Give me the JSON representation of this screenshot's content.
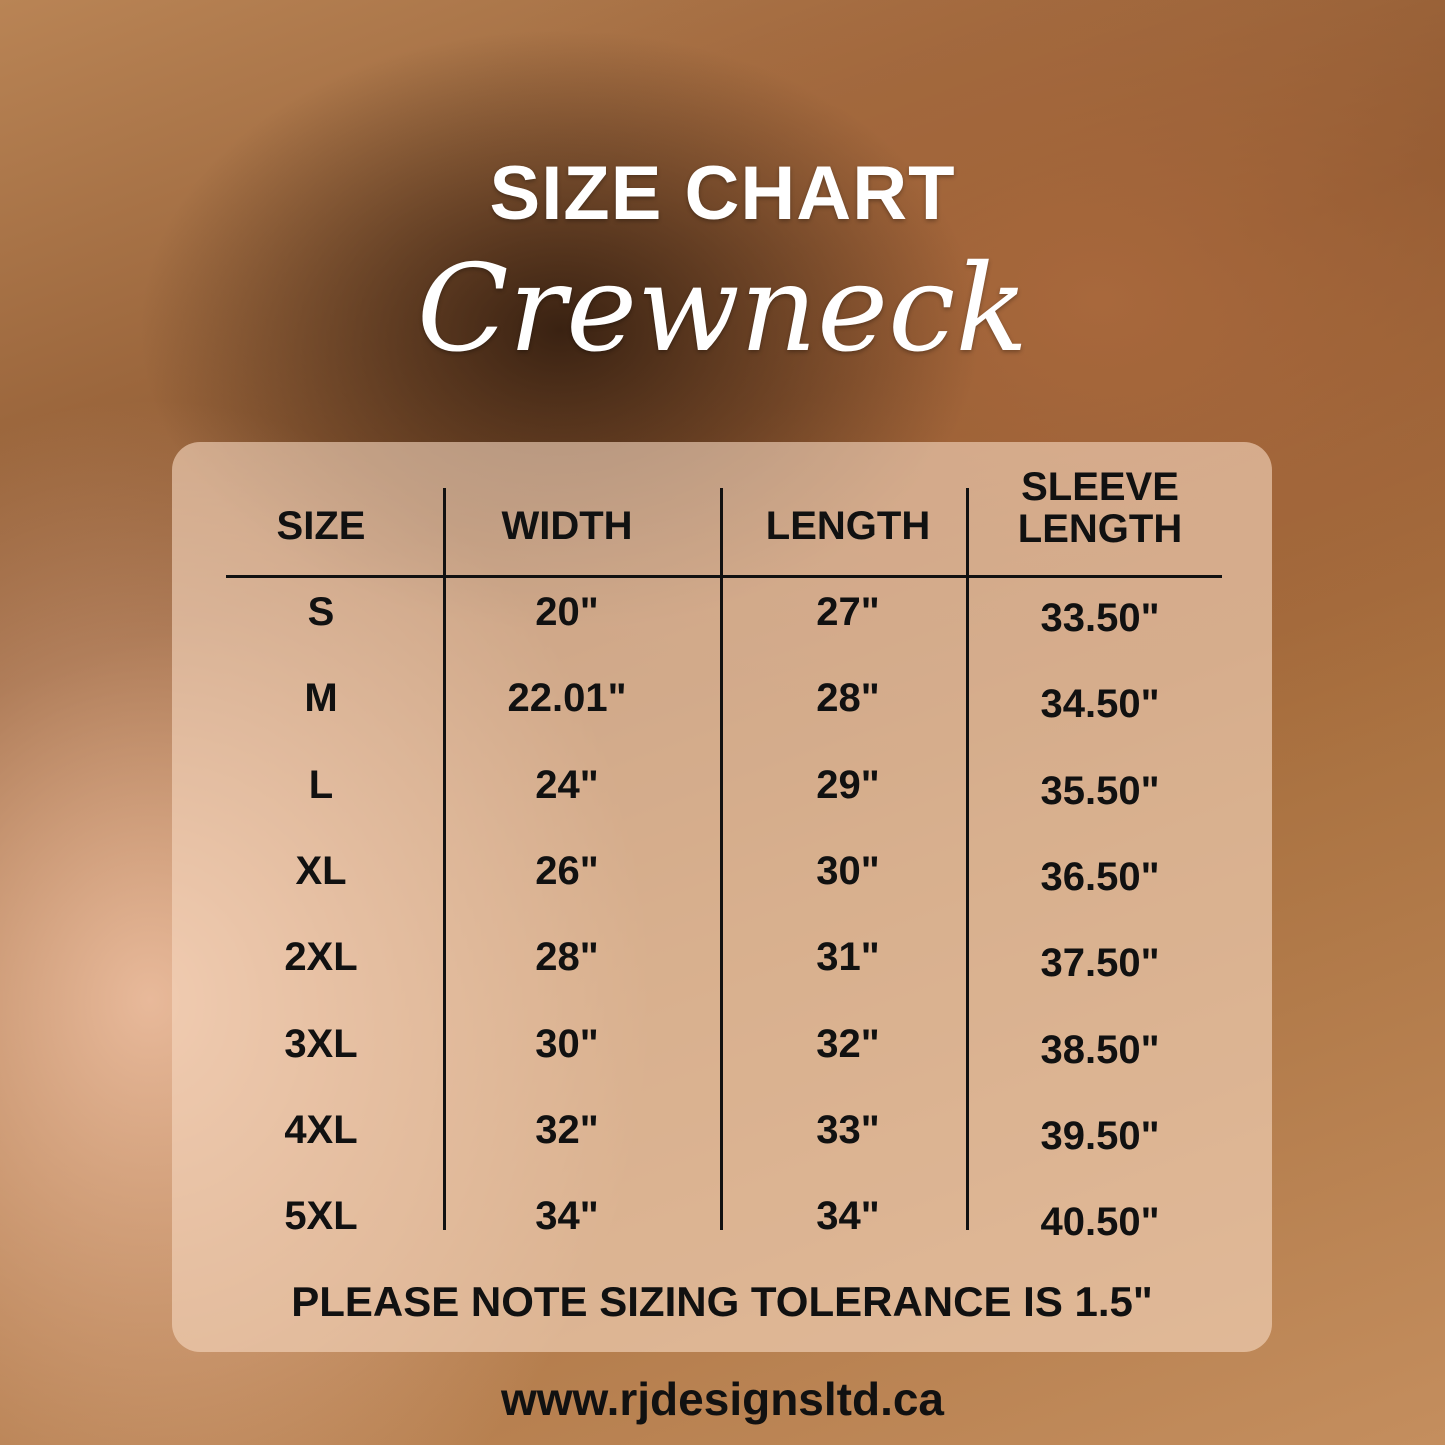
{
  "title": "SIZE CHART",
  "subtitle": "Crewneck",
  "table": {
    "headers": [
      "SIZE",
      "WIDTH",
      "LENGTH",
      "SLEEVE LENGTH"
    ],
    "rows": [
      [
        "S",
        "20\"",
        "27\"",
        "33.50\""
      ],
      [
        "M",
        "22.01\"",
        "28\"",
        "34.50\""
      ],
      [
        "L",
        "24\"",
        "29\"",
        "35.50\""
      ],
      [
        "XL",
        "26\"",
        "30\"",
        "36.50\""
      ],
      [
        "2XL",
        "28\"",
        "31\"",
        "37.50\""
      ],
      [
        "3XL",
        "30\"",
        "32\"",
        "38.50\""
      ],
      [
        "4XL",
        "32\"",
        "33\"",
        "39.50\""
      ],
      [
        "5XL",
        "34\"",
        "34\"",
        "40.50\""
      ]
    ]
  },
  "note": "PLEASE NOTE SIZING TOLERANCE IS 1.5\"",
  "website": "www.rjdesignsltd.ca"
}
